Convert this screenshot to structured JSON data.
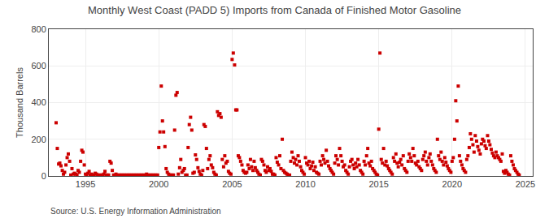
{
  "chart_data": {
    "type": "scatter",
    "title": "Monthly West Coast (PADD 5) Imports from Canada of Finished Motor Gasoline",
    "ylabel": "Thousand Barrels",
    "annotations": [
      "Source: U.S. Energy Information Administration"
    ],
    "color": "#cc0000",
    "marker": "square",
    "grid": true,
    "xlim": [
      1992.5,
      2025.5
    ],
    "ylim": [
      0,
      800
    ],
    "xticks": [
      1995,
      2000,
      2005,
      2010,
      2015,
      2020,
      2025
    ],
    "yticks": [
      0,
      200,
      400,
      600,
      800
    ],
    "x": [
      1993.0,
      1993.08,
      1993.17,
      1993.25,
      1993.33,
      1993.42,
      1993.5,
      1993.58,
      1993.67,
      1993.75,
      1993.83,
      1993.92,
      1994.0,
      1994.08,
      1994.17,
      1994.25,
      1994.33,
      1994.42,
      1994.5,
      1994.58,
      1994.67,
      1994.75,
      1994.83,
      1994.92,
      1995.0,
      1995.08,
      1995.17,
      1995.25,
      1995.33,
      1995.42,
      1995.5,
      1995.58,
      1995.67,
      1995.75,
      1995.83,
      1995.92,
      1996.0,
      1996.08,
      1996.17,
      1996.25,
      1996.33,
      1996.42,
      1996.5,
      1996.58,
      1996.67,
      1996.75,
      1996.83,
      1996.92,
      1997.0,
      1997.08,
      1997.17,
      1997.25,
      1997.33,
      1997.42,
      1997.5,
      1997.58,
      1997.67,
      1997.75,
      1997.83,
      1997.92,
      1998.0,
      1998.08,
      1998.17,
      1998.25,
      1998.33,
      1998.42,
      1998.5,
      1998.58,
      1998.67,
      1998.75,
      1998.83,
      1998.92,
      1999.0,
      1999.08,
      1999.17,
      1999.25,
      1999.33,
      1999.42,
      1999.5,
      1999.58,
      1999.67,
      1999.75,
      1999.83,
      1999.92,
      2000.0,
      2000.08,
      2000.17,
      2000.25,
      2000.33,
      2000.42,
      2000.5,
      2000.58,
      2000.67,
      2000.75,
      2000.83,
      2000.92,
      2001.0,
      2001.08,
      2001.17,
      2001.25,
      2001.33,
      2001.42,
      2001.5,
      2001.58,
      2001.67,
      2001.75,
      2001.83,
      2001.92,
      2002.0,
      2002.08,
      2002.17,
      2002.25,
      2002.33,
      2002.42,
      2002.5,
      2002.58,
      2002.67,
      2002.75,
      2002.83,
      2002.92,
      2003.0,
      2003.08,
      2003.17,
      2003.25,
      2003.33,
      2003.42,
      2003.5,
      2003.58,
      2003.67,
      2003.75,
      2003.83,
      2003.92,
      2004.0,
      2004.08,
      2004.17,
      2004.25,
      2004.33,
      2004.42,
      2004.5,
      2004.58,
      2004.67,
      2004.75,
      2004.83,
      2004.92,
      2005.0,
      2005.08,
      2005.17,
      2005.25,
      2005.33,
      2005.42,
      2005.5,
      2005.58,
      2005.67,
      2005.75,
      2005.83,
      2005.92,
      2006.0,
      2006.08,
      2006.17,
      2006.25,
      2006.33,
      2006.42,
      2006.5,
      2006.58,
      2006.67,
      2006.75,
      2006.83,
      2006.92,
      2007.0,
      2007.08,
      2007.17,
      2007.25,
      2007.33,
      2007.42,
      2007.5,
      2007.58,
      2007.67,
      2007.75,
      2007.83,
      2007.92,
      2008.0,
      2008.08,
      2008.17,
      2008.25,
      2008.33,
      2008.42,
      2008.5,
      2008.58,
      2008.67,
      2008.75,
      2008.83,
      2008.92,
      2009.0,
      2009.08,
      2009.17,
      2009.25,
      2009.33,
      2009.42,
      2009.5,
      2009.58,
      2009.67,
      2009.75,
      2009.83,
      2009.92,
      2010.0,
      2010.08,
      2010.17,
      2010.25,
      2010.33,
      2010.42,
      2010.5,
      2010.58,
      2010.67,
      2010.75,
      2010.83,
      2010.92,
      2011.0,
      2011.08,
      2011.17,
      2011.25,
      2011.33,
      2011.42,
      2011.5,
      2011.58,
      2011.67,
      2011.75,
      2011.83,
      2011.92,
      2012.0,
      2012.08,
      2012.17,
      2012.25,
      2012.33,
      2012.42,
      2012.5,
      2012.58,
      2012.67,
      2012.75,
      2012.83,
      2012.92,
      2013.0,
      2013.08,
      2013.17,
      2013.25,
      2013.33,
      2013.42,
      2013.5,
      2013.58,
      2013.67,
      2013.75,
      2013.83,
      2013.92,
      2014.0,
      2014.08,
      2014.17,
      2014.25,
      2014.33,
      2014.42,
      2014.5,
      2014.58,
      2014.67,
      2014.75,
      2014.83,
      2014.92,
      2015.0,
      2015.08,
      2015.17,
      2015.25,
      2015.33,
      2015.42,
      2015.5,
      2015.58,
      2015.67,
      2015.75,
      2015.83,
      2015.92,
      2016.0,
      2016.08,
      2016.17,
      2016.25,
      2016.33,
      2016.42,
      2016.5,
      2016.58,
      2016.67,
      2016.75,
      2016.83,
      2016.92,
      2017.0,
      2017.08,
      2017.17,
      2017.25,
      2017.33,
      2017.42,
      2017.5,
      2017.58,
      2017.67,
      2017.75,
      2017.83,
      2017.92,
      2018.0,
      2018.08,
      2018.17,
      2018.25,
      2018.33,
      2018.42,
      2018.5,
      2018.58,
      2018.67,
      2018.75,
      2018.83,
      2018.92,
      2019.0,
      2019.08,
      2019.17,
      2019.25,
      2019.33,
      2019.42,
      2019.5,
      2019.58,
      2019.67,
      2019.75,
      2019.83,
      2019.92,
      2020.0,
      2020.08,
      2020.17,
      2020.25,
      2020.33,
      2020.42,
      2020.5,
      2020.58,
      2020.67,
      2020.75,
      2020.83,
      2020.92,
      2021.0,
      2021.08,
      2021.17,
      2021.25,
      2021.33,
      2021.42,
      2021.5,
      2021.58,
      2021.67,
      2021.75,
      2021.83,
      2021.92,
      2022.0,
      2022.08,
      2022.17,
      2022.25,
      2022.33,
      2022.42,
      2022.5,
      2022.58,
      2022.67,
      2022.75,
      2022.83,
      2022.92,
      2023.0,
      2023.08,
      2023.17,
      2023.25,
      2023.33,
      2023.42,
      2023.5,
      2023.58,
      2023.67,
      2023.75,
      2023.83,
      2023.92,
      2024.0,
      2024.08,
      2024.17,
      2024.25,
      2024.33,
      2024.42,
      2024.5,
      2024.58
    ],
    "values": [
      290,
      150,
      65,
      70,
      55,
      30,
      10,
      20,
      60,
      100,
      120,
      80,
      5,
      40,
      10,
      15,
      10,
      5,
      30,
      20,
      80,
      140,
      130,
      60,
      10,
      5,
      15,
      25,
      5,
      10,
      5,
      5,
      15,
      10,
      5,
      5,
      5,
      5,
      5,
      10,
      25,
      5,
      5,
      5,
      80,
      70,
      30,
      5,
      5,
      10,
      5,
      5,
      5,
      5,
      5,
      5,
      5,
      5,
      5,
      5,
      5,
      5,
      5,
      5,
      5,
      5,
      5,
      5,
      5,
      5,
      5,
      5,
      5,
      5,
      10,
      5,
      5,
      5,
      5,
      5,
      5,
      5,
      5,
      5,
      155,
      240,
      490,
      300,
      240,
      160,
      40,
      20,
      10,
      5,
      5,
      5,
      5,
      250,
      440,
      455,
      10,
      45,
      90,
      20,
      30,
      40,
      5,
      5,
      155,
      280,
      320,
      250,
      15,
      20,
      115,
      90,
      45,
      25,
      10,
      5,
      30,
      280,
      270,
      150,
      40,
      90,
      110,
      60,
      45,
      20,
      10,
      5,
      350,
      330,
      340,
      320,
      90,
      50,
      110,
      70,
      80,
      25,
      15,
      10,
      635,
      670,
      605,
      360,
      360,
      110,
      100,
      80,
      60,
      30,
      20,
      15,
      20,
      60,
      40,
      90,
      50,
      30,
      80,
      45,
      30,
      20,
      10,
      5,
      90,
      80,
      60,
      30,
      20,
      50,
      30,
      40,
      25,
      10,
      10,
      5,
      100,
      75,
      60,
      110,
      40,
      200,
      30,
      20,
      15,
      10,
      5,
      5,
      80,
      130,
      100,
      70,
      90,
      60,
      110,
      80,
      50,
      30,
      20,
      10,
      100,
      70,
      60,
      80,
      40,
      55,
      75,
      30,
      50,
      20,
      15,
      10,
      80,
      60,
      110,
      90,
      70,
      140,
      80,
      55,
      40,
      30,
      20,
      10,
      70,
      110,
      90,
      60,
      150,
      110,
      80,
      50,
      60,
      30,
      20,
      10,
      50,
      80,
      90,
      60,
      40,
      70,
      50,
      90,
      60,
      30,
      20,
      10,
      80,
      60,
      110,
      150,
      70,
      55,
      80,
      40,
      30,
      20,
      10,
      5,
      255,
      670,
      90,
      70,
      150,
      60,
      80,
      55,
      40,
      30,
      20,
      10,
      100,
      80,
      120,
      70,
      50,
      75,
      90,
      60,
      110,
      40,
      30,
      20,
      80,
      120,
      100,
      80,
      150,
      110,
      70,
      60,
      80,
      50,
      40,
      30,
      90,
      110,
      130,
      80,
      60,
      100,
      120,
      80,
      60,
      40,
      30,
      20,
      200,
      110,
      90,
      130,
      80,
      60,
      100,
      75,
      55,
      40,
      30,
      20,
      80,
      100,
      200,
      410,
      300,
      490,
      110,
      80,
      60,
      40,
      30,
      20,
      90,
      110,
      155,
      230,
      200,
      170,
      130,
      220,
      190,
      160,
      140,
      120,
      175,
      200,
      190,
      165,
      150,
      220,
      190,
      170,
      145,
      125,
      110,
      100,
      130,
      110,
      100,
      90,
      80,
      120,
      25,
      15,
      30,
      20,
      10,
      5,
      110,
      80,
      60,
      40,
      30,
      20,
      10,
      5
    ]
  }
}
